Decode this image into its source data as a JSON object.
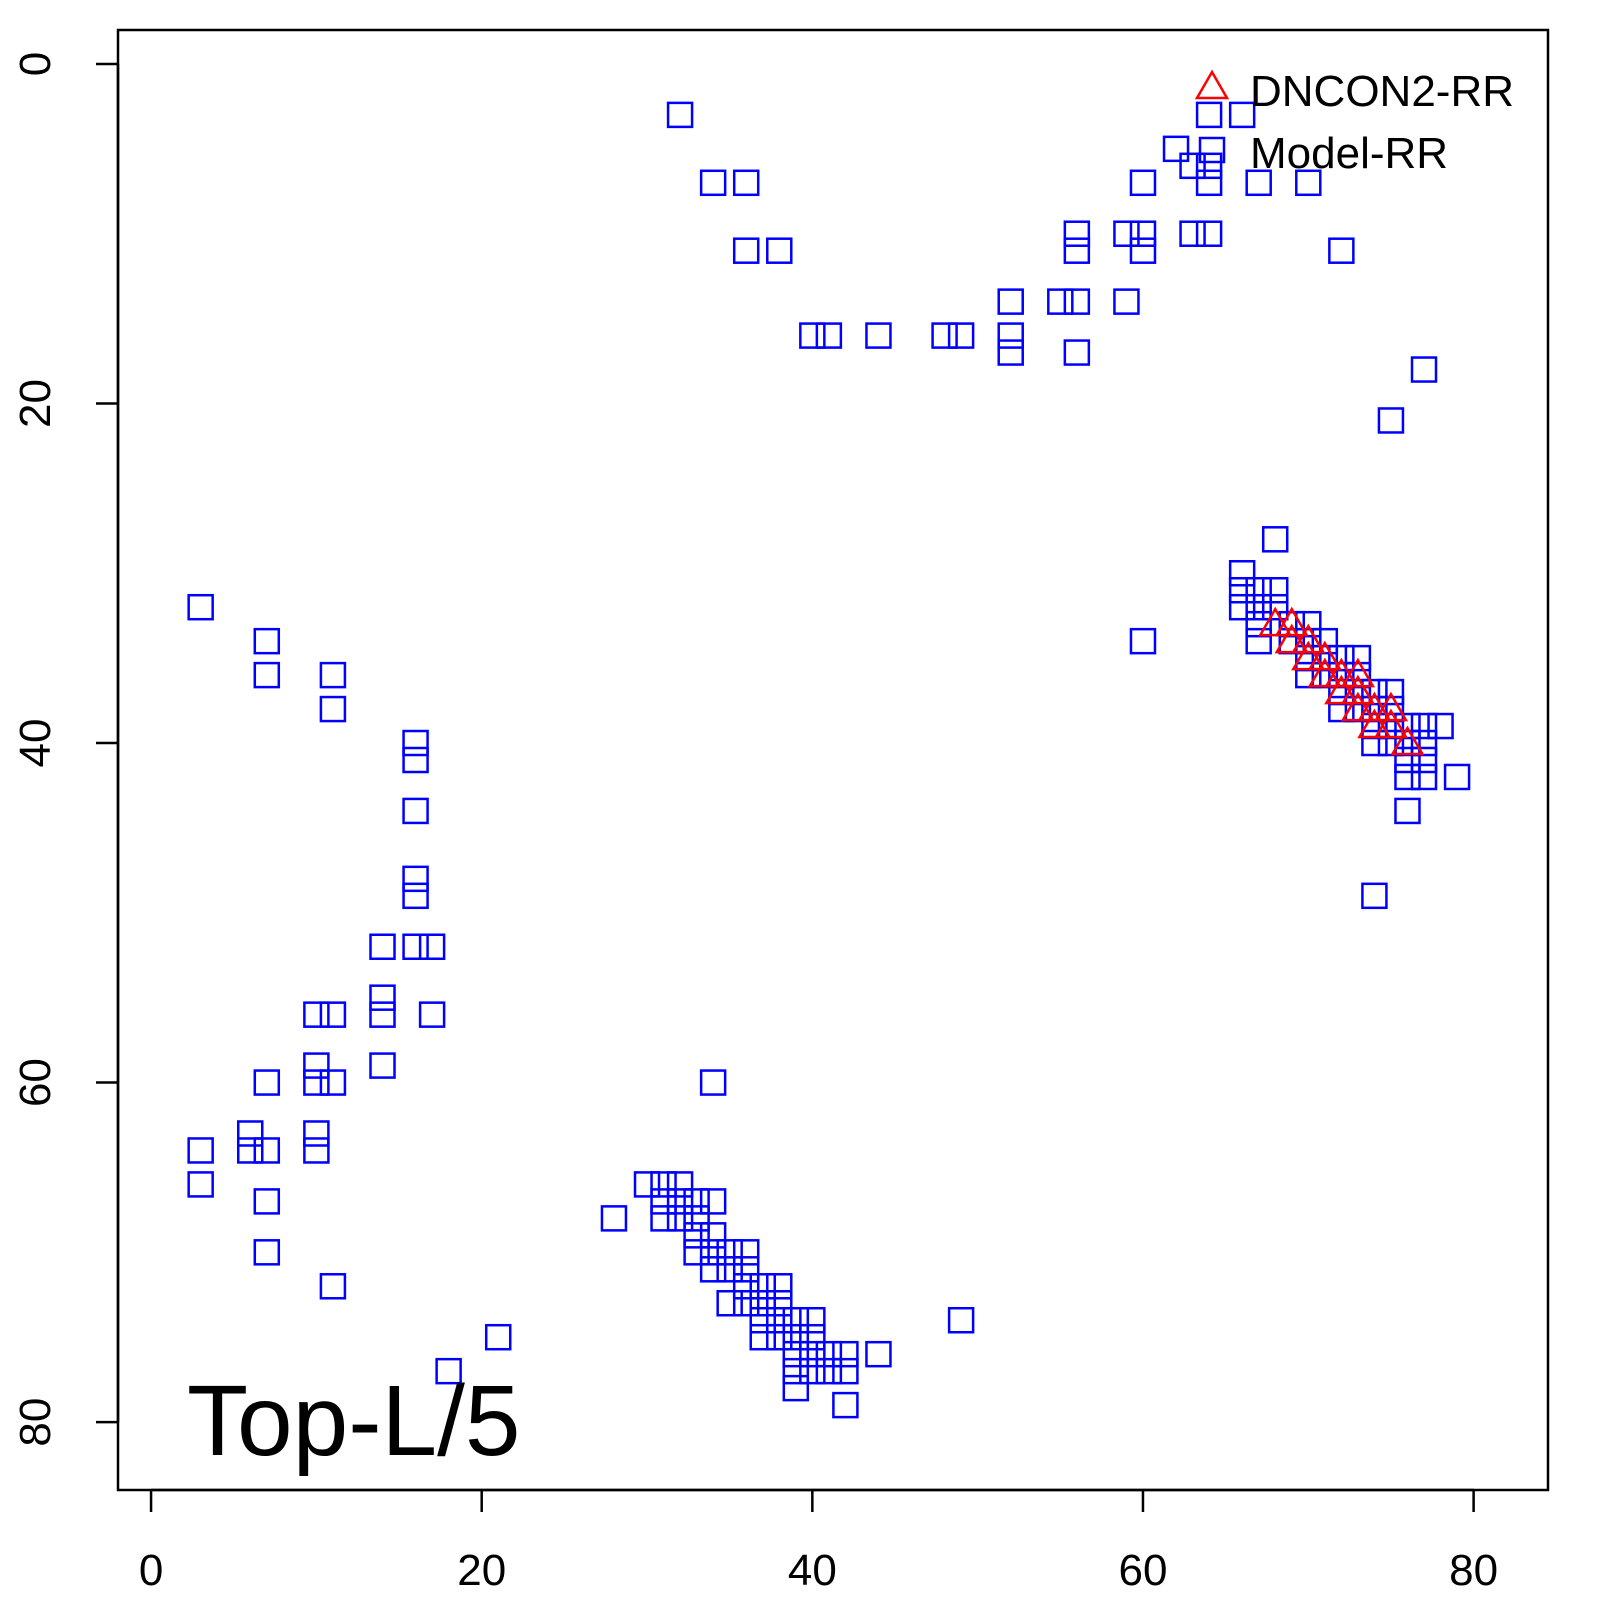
{
  "chart_data": {
    "type": "scatter",
    "title": "",
    "xlabel": "",
    "ylabel": "",
    "xlim": [
      -2,
      84.5
    ],
    "ylim": [
      84,
      -2
    ],
    "y_reversed": true,
    "x_ticks": [
      0,
      20,
      40,
      60,
      80
    ],
    "y_ticks": [
      0,
      20,
      40,
      60,
      80
    ],
    "annotation": "Top-L/5",
    "legend_position": "top-right",
    "series": [
      {
        "name": "DNCON2-RR",
        "marker": "triangle",
        "color": "#ff0000",
        "points": [
          [
            68,
            33
          ],
          [
            69,
            33
          ],
          [
            69,
            34
          ],
          [
            70,
            34
          ],
          [
            70,
            35
          ],
          [
            71,
            35
          ],
          [
            71,
            36
          ],
          [
            72,
            36
          ],
          [
            72,
            37
          ],
          [
            73,
            36
          ],
          [
            73,
            37
          ],
          [
            73,
            38
          ],
          [
            74,
            38
          ],
          [
            74,
            39
          ],
          [
            75,
            38
          ],
          [
            75,
            39
          ],
          [
            76,
            40
          ]
        ]
      },
      {
        "name": "Model-RR",
        "marker": "square",
        "color": "#0000ff",
        "points": [
          [
            32,
            3
          ],
          [
            34,
            7
          ],
          [
            36,
            7
          ],
          [
            36,
            11
          ],
          [
            38,
            11
          ],
          [
            40,
            16
          ],
          [
            41,
            16
          ],
          [
            44,
            16
          ],
          [
            48,
            16
          ],
          [
            49,
            16
          ],
          [
            52,
            14
          ],
          [
            52,
            16
          ],
          [
            52,
            17
          ],
          [
            55,
            14
          ],
          [
            56,
            14
          ],
          [
            56,
            17
          ],
          [
            56,
            10
          ],
          [
            56,
            11
          ],
          [
            59,
            10
          ],
          [
            59,
            14
          ],
          [
            60,
            7
          ],
          [
            60,
            10
          ],
          [
            60,
            11
          ],
          [
            62,
            5
          ],
          [
            63,
            6
          ],
          [
            63,
            10
          ],
          [
            64,
            3
          ],
          [
            64,
            6
          ],
          [
            64,
            7
          ],
          [
            64,
            10
          ],
          [
            66,
            3
          ],
          [
            67,
            7
          ],
          [
            70,
            7
          ],
          [
            72,
            11
          ],
          [
            77,
            18
          ],
          [
            75,
            21
          ],
          [
            68,
            28
          ],
          [
            66,
            30
          ],
          [
            66,
            31
          ],
          [
            66,
            32
          ],
          [
            67,
            31
          ],
          [
            67,
            32
          ],
          [
            67,
            33
          ],
          [
            67,
            34
          ],
          [
            68,
            31
          ],
          [
            68,
            32
          ],
          [
            69,
            33
          ],
          [
            69,
            34
          ],
          [
            70,
            33
          ],
          [
            70,
            34
          ],
          [
            70,
            35
          ],
          [
            70,
            36
          ],
          [
            71,
            34
          ],
          [
            71,
            35
          ],
          [
            71,
            36
          ],
          [
            72,
            35
          ],
          [
            72,
            36
          ],
          [
            72,
            37
          ],
          [
            72,
            38
          ],
          [
            73,
            35
          ],
          [
            73,
            36
          ],
          [
            73,
            37
          ],
          [
            73,
            38
          ],
          [
            74,
            37
          ],
          [
            74,
            38
          ],
          [
            74,
            39
          ],
          [
            74,
            40
          ],
          [
            75,
            37
          ],
          [
            75,
            38
          ],
          [
            75,
            39
          ],
          [
            75,
            40
          ],
          [
            76,
            39
          ],
          [
            76,
            40
          ],
          [
            76,
            41
          ],
          [
            76,
            42
          ],
          [
            76,
            44
          ],
          [
            77,
            39
          ],
          [
            77,
            40
          ],
          [
            77,
            41
          ],
          [
            77,
            42
          ],
          [
            78,
            39
          ],
          [
            79,
            42
          ],
          [
            74,
            49
          ],
          [
            60,
            34
          ],
          [
            3,
            32
          ],
          [
            7,
            34
          ],
          [
            7,
            36
          ],
          [
            11,
            36
          ],
          [
            11,
            38
          ],
          [
            16,
            40
          ],
          [
            16,
            41
          ],
          [
            16,
            44
          ],
          [
            16,
            48
          ],
          [
            16,
            49
          ],
          [
            14,
            52
          ],
          [
            16,
            52
          ],
          [
            17,
            52
          ],
          [
            14,
            55
          ],
          [
            14,
            56
          ],
          [
            17,
            56
          ],
          [
            10,
            56
          ],
          [
            11,
            56
          ],
          [
            10,
            59
          ],
          [
            14,
            59
          ],
          [
            7,
            60
          ],
          [
            10,
            60
          ],
          [
            11,
            60
          ],
          [
            6,
            63
          ],
          [
            6,
            64
          ],
          [
            7,
            64
          ],
          [
            10,
            63
          ],
          [
            10,
            64
          ],
          [
            3,
            64
          ],
          [
            3,
            66
          ],
          [
            7,
            67
          ],
          [
            7,
            70
          ],
          [
            11,
            72
          ],
          [
            34,
            60
          ],
          [
            49,
            74
          ],
          [
            21,
            75
          ],
          [
            18,
            77
          ],
          [
            30,
            66
          ],
          [
            31,
            66
          ],
          [
            31,
            67
          ],
          [
            31,
            68
          ],
          [
            32,
            66
          ],
          [
            32,
            67
          ],
          [
            32,
            68
          ],
          [
            28,
            68
          ],
          [
            33,
            67
          ],
          [
            33,
            68
          ],
          [
            33,
            69
          ],
          [
            33,
            70
          ],
          [
            34,
            67
          ],
          [
            34,
            69
          ],
          [
            34,
            70
          ],
          [
            34,
            71
          ],
          [
            35,
            70
          ],
          [
            35,
            71
          ],
          [
            35,
            73
          ],
          [
            36,
            70
          ],
          [
            36,
            71
          ],
          [
            36,
            72
          ],
          [
            36,
            73
          ],
          [
            37,
            72
          ],
          [
            37,
            73
          ],
          [
            37,
            74
          ],
          [
            37,
            75
          ],
          [
            38,
            72
          ],
          [
            38,
            73
          ],
          [
            38,
            74
          ],
          [
            38,
            75
          ],
          [
            39,
            74
          ],
          [
            39,
            75
          ],
          [
            39,
            76
          ],
          [
            39,
            77
          ],
          [
            39,
            78
          ],
          [
            40,
            74
          ],
          [
            40,
            75
          ],
          [
            40,
            76
          ],
          [
            40,
            77
          ],
          [
            41,
            76
          ],
          [
            41,
            77
          ],
          [
            42,
            76
          ],
          [
            42,
            77
          ],
          [
            42,
            79
          ],
          [
            44,
            76
          ]
        ]
      }
    ]
  }
}
